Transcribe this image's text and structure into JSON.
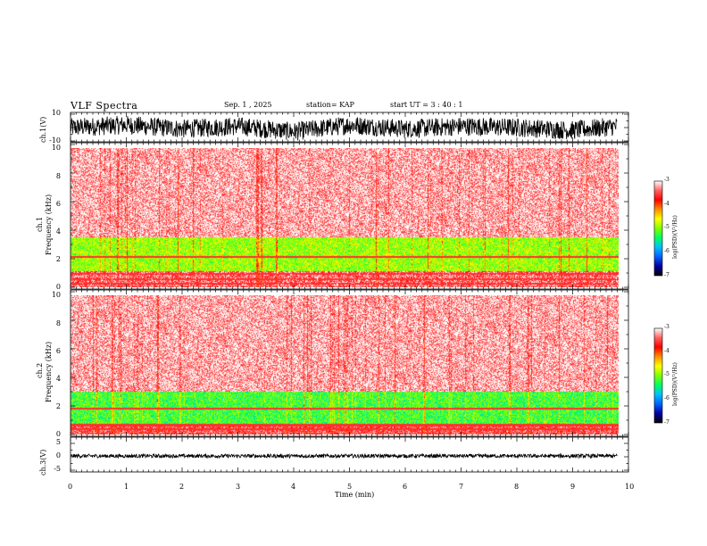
{
  "header": {
    "title": "VLF Spectra",
    "date": "Sep. 1  , 2025",
    "station": "station= KAP",
    "start": "start  UT  =   3  : 40 : 1"
  },
  "colors": {
    "trace": "#000000",
    "colormap": [
      "#000000",
      "#0000a0",
      "#0060ff",
      "#00c0ff",
      "#00ff60",
      "#80ff00",
      "#ffff00",
      "#ff9000",
      "#ff0000",
      "#ff6060",
      "#ffffff"
    ]
  },
  "chart_data": [
    {
      "type": "line",
      "name": "waveform-ch1",
      "ylabel": "ch.1(V)",
      "ylim": [
        -10,
        10
      ],
      "yticks": [
        "10",
        "-10"
      ],
      "xlim": [
        0,
        10
      ],
      "trend": {
        "x": [
          0,
          1,
          2,
          3,
          4,
          5,
          6,
          7,
          8,
          9,
          9.8
        ],
        "center": [
          0,
          2,
          -1,
          1,
          -3,
          2,
          -1,
          1,
          0,
          -2,
          1
        ],
        "amplitude": 7
      }
    },
    {
      "type": "heatmap",
      "name": "spectrogram-ch1",
      "ylabel": "Frequency  (kHz)",
      "panel_label": "ch.1",
      "ylim": [
        0,
        10
      ],
      "yticks": [
        "0",
        "2",
        "4",
        "6",
        "8",
        "10"
      ],
      "xlim": [
        0,
        9.8
      ],
      "bands_khz": [
        {
          "from": 0,
          "to": 1.2,
          "level": -3.4
        },
        {
          "from": 1.2,
          "to": 3.6,
          "level": -4.9
        },
        {
          "from": 3.6,
          "to": 10,
          "level": -3.2
        }
      ],
      "lines_khz": [
        0.3,
        0.6,
        1.0,
        2.2
      ]
    },
    {
      "type": "heatmap",
      "name": "spectrogram-ch2",
      "ylabel": "Frequency  (kHz)",
      "panel_label": "ch.2",
      "ylim": [
        0,
        10
      ],
      "yticks": [
        "0",
        "2",
        "4",
        "6",
        "8",
        "10"
      ],
      "xlim": [
        0,
        9.8
      ],
      "bands_khz": [
        {
          "from": 0,
          "to": 0.8,
          "level": -3.5
        },
        {
          "from": 0.8,
          "to": 3.1,
          "level": -5.2
        },
        {
          "from": 3.1,
          "to": 10,
          "level": -3.2
        }
      ],
      "lines_khz": [
        0.4,
        0.7,
        1.9
      ]
    },
    {
      "type": "line",
      "name": "waveform-ch3",
      "ylabel": "ch.3(V)",
      "ylim": [
        -5,
        5
      ],
      "yticks": [
        "5",
        "0",
        "-5"
      ],
      "xlim": [
        0,
        10
      ],
      "trend": {
        "x": [
          0,
          9.8
        ],
        "center": [
          0.3,
          0.3
        ],
        "amplitude": 0.7
      }
    }
  ],
  "xaxis": {
    "label": "Time  (min)",
    "ticks": [
      "0",
      "1",
      "2",
      "3",
      "4",
      "5",
      "6",
      "7",
      "8",
      "9",
      "10"
    ]
  },
  "colorbar": {
    "label": "log(PSD)(V²/Hz)",
    "ticks": [
      "-3",
      "-4",
      "-5",
      "-6",
      "-7"
    ],
    "range": [
      -7,
      -3
    ]
  }
}
